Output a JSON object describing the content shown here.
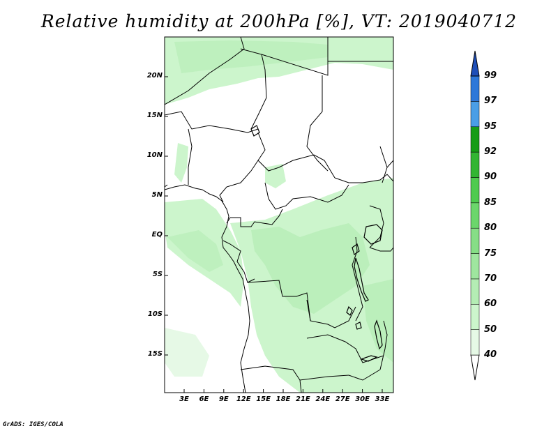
{
  "title": "Relative humidity at 200hPa [%], VT: 2019040712",
  "credit": "GrADS: IGES/COLA",
  "lat_ticks": [
    "20N",
    "15N",
    "10N",
    "5N",
    "EQ",
    "5S",
    "10S",
    "15S"
  ],
  "lon_ticks": [
    "3E",
    "6E",
    "9E",
    "12E",
    "15E",
    "18E",
    "21E",
    "24E",
    "27E",
    "30E",
    "33E"
  ],
  "colorbar": {
    "labels": [
      "40",
      "50",
      "60",
      "70",
      "75",
      "80",
      "85",
      "90",
      "92",
      "95",
      "97",
      "99"
    ],
    "colors": [
      "#e6f9e6",
      "#ccf5cc",
      "#b4edb4",
      "#9fe69f",
      "#86de86",
      "#6bd66b",
      "#4fcb4f",
      "#33b533",
      "#179c17",
      "#4a9ee6",
      "#2e78d9",
      "#1f4fb8"
    ]
  },
  "map": {
    "shading": "light green (40-60%) over coastal West Africa, Gulf of Guinea, Congo Basin, East African lakes and Sahara edge",
    "lakes": [
      "Lake Victoria",
      "Lake Tanganyika",
      "Lake Malawi"
    ]
  }
}
